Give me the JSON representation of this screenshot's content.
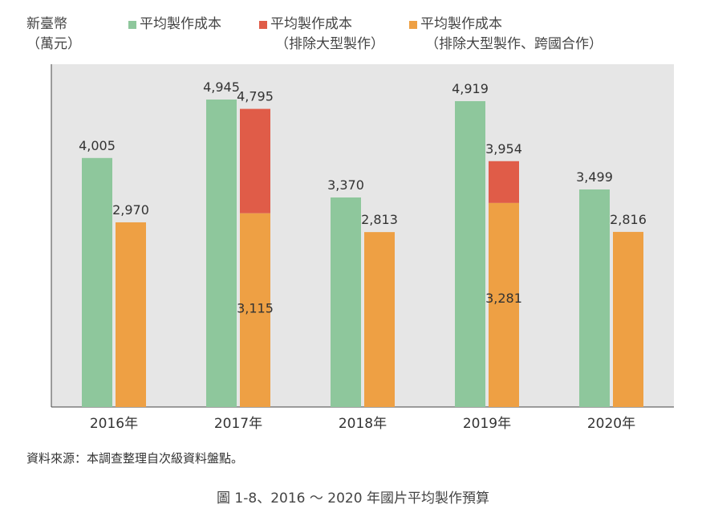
{
  "chart_data": {
    "type": "bar",
    "ylabel": "新臺幣（萬元）",
    "categories": [
      "2016年",
      "2017年",
      "2018年",
      "2019年",
      "2020年"
    ],
    "series": [
      {
        "name": "平均製作成本",
        "color": "#8ec79c",
        "values": [
          4005,
          4945,
          3370,
          4919,
          3499
        ],
        "labels": [
          "4,005",
          "4,945",
          "3,370",
          "4,919",
          "3,499"
        ]
      },
      {
        "name": "平均製作成本（排除大型製作）",
        "color": "#e05c48",
        "values": [
          null,
          4795,
          null,
          3954,
          null
        ],
        "labels": [
          "",
          "4,795",
          "",
          "3,954",
          ""
        ]
      },
      {
        "name": "平均製作成本（排除大型製作、跨國合作）",
        "color": "#eea044",
        "values": [
          2970,
          3115,
          2813,
          3281,
          2816
        ],
        "labels": [
          "2,970",
          "3,115",
          "2,813",
          "3,281",
          "2,816"
        ]
      }
    ],
    "grid": false,
    "legend_position": "top"
  },
  "header": {
    "ylabel_line1": "新臺幣",
    "ylabel_line2": "（萬元）",
    "legend": [
      {
        "line1": "平均製作成本",
        "line2": "",
        "color": "#8ec79c"
      },
      {
        "line1": "平均製作成本",
        "line2": "（排除大型製作）",
        "color": "#e05c48"
      },
      {
        "line1": "平均製作成本",
        "line2": "（排除大型製作、跨國合作）",
        "color": "#eea044"
      }
    ]
  },
  "source": "資料來源：本調查整理自次級資料盤點。",
  "caption": "圖 1-8、2016 ～ 2020 年國片平均製作預算"
}
